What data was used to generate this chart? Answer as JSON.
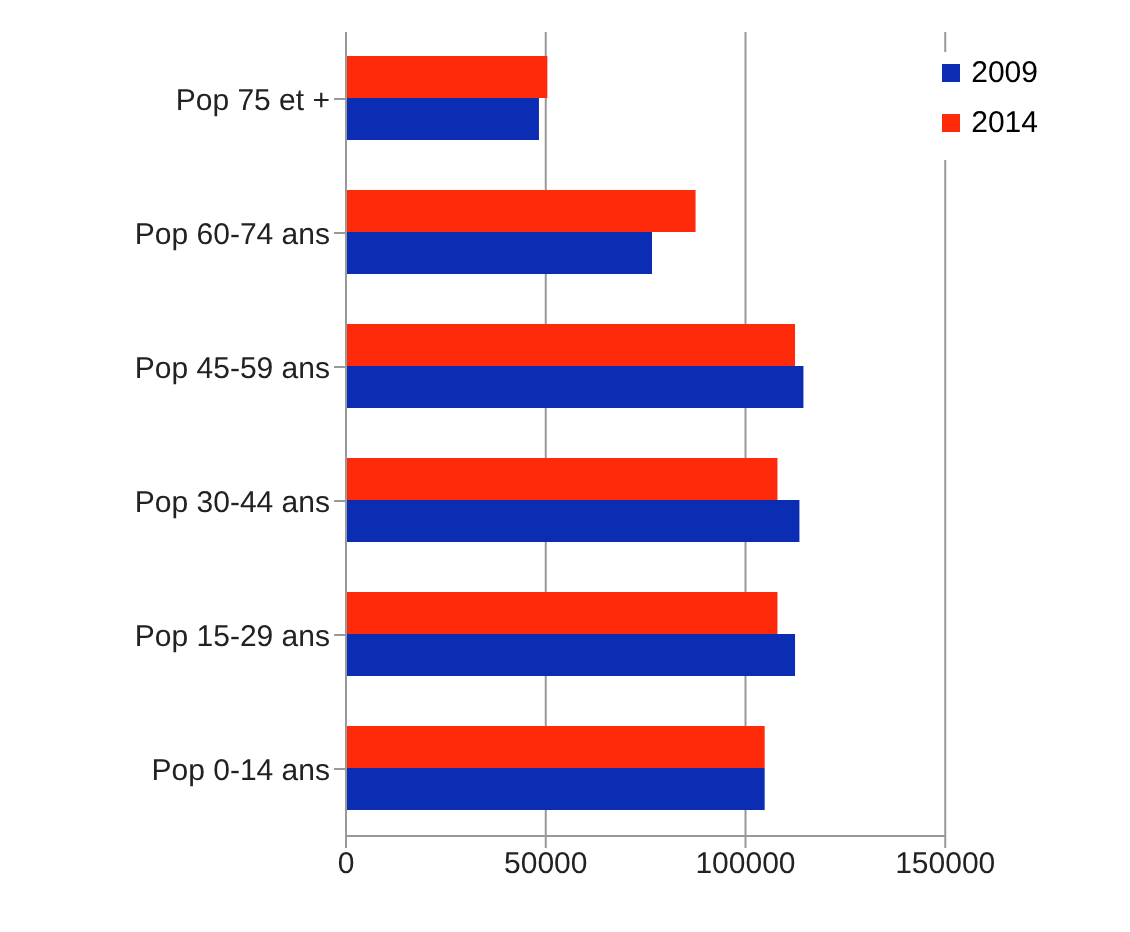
{
  "chart_data": {
    "type": "bar",
    "orientation": "horizontal",
    "categories": [
      "Pop 75 et  +",
      "Pop 60-74 ans",
      "Pop 45-59 ans",
      "Pop 30-44 ans",
      "Pop 15-29 ans",
      "Pop 0-14 ans"
    ],
    "series": [
      {
        "name": "2009",
        "color": "#0a2db4",
        "values": [
          48300,
          76600,
          114500,
          113500,
          112400,
          104800
        ]
      },
      {
        "name": "2014",
        "color": "#ff2a0a",
        "values": [
          50400,
          87500,
          112400,
          108000,
          108000,
          104800
        ]
      }
    ],
    "xlim": [
      0,
      150000
    ],
    "xticks": [
      0,
      50000,
      100000,
      150000
    ],
    "grid": "x",
    "legend": "top right"
  }
}
